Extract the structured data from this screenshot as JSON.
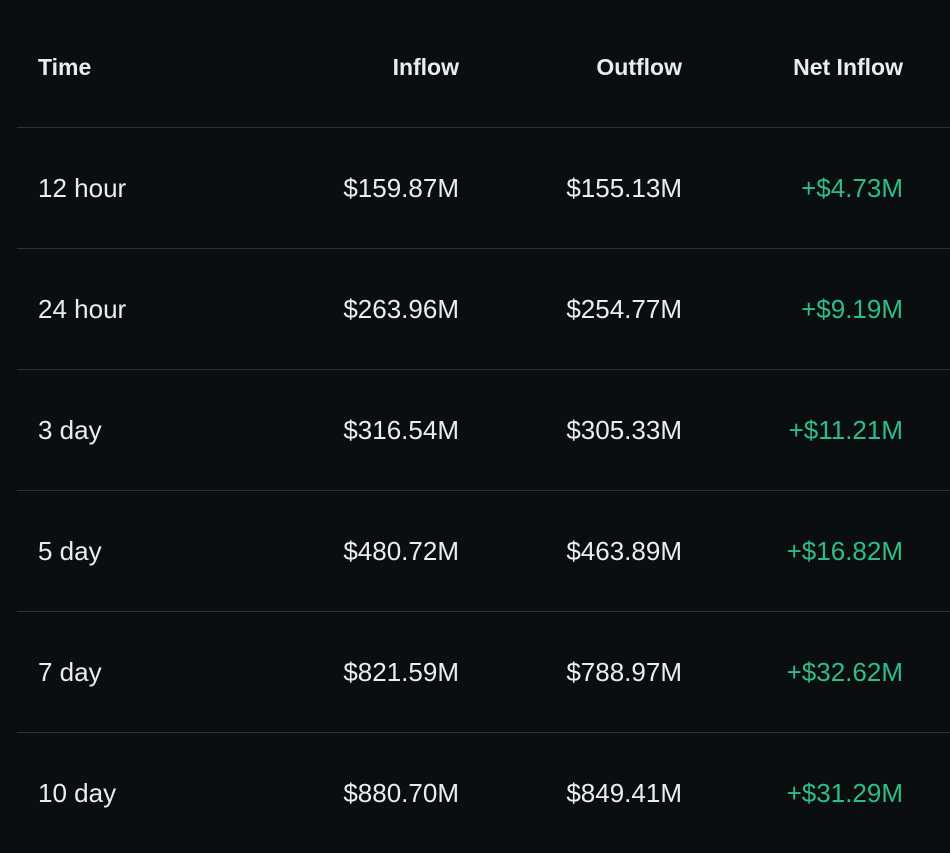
{
  "table": {
    "headers": {
      "time": "Time",
      "inflow": "Inflow",
      "outflow": "Outflow",
      "net_inflow": "Net Inflow"
    },
    "rows": [
      {
        "time": "12 hour",
        "inflow": "$159.87M",
        "outflow": "$155.13M",
        "net_inflow": "+$4.73M"
      },
      {
        "time": "24 hour",
        "inflow": "$263.96M",
        "outflow": "$254.77M",
        "net_inflow": "+$9.19M"
      },
      {
        "time": "3 day",
        "inflow": "$316.54M",
        "outflow": "$305.33M",
        "net_inflow": "+$11.21M"
      },
      {
        "time": "5 day",
        "inflow": "$480.72M",
        "outflow": "$463.89M",
        "net_inflow": "+$16.82M"
      },
      {
        "time": "7 day",
        "inflow": "$821.59M",
        "outflow": "$788.97M",
        "net_inflow": "+$32.62M"
      },
      {
        "time": "10 day",
        "inflow": "$880.70M",
        "outflow": "$849.41M",
        "net_inflow": "+$31.29M"
      }
    ]
  },
  "colors": {
    "background": "#0b0e11",
    "text": "#eaecef",
    "positive": "#2ebd85",
    "divider": "#2b3139"
  }
}
